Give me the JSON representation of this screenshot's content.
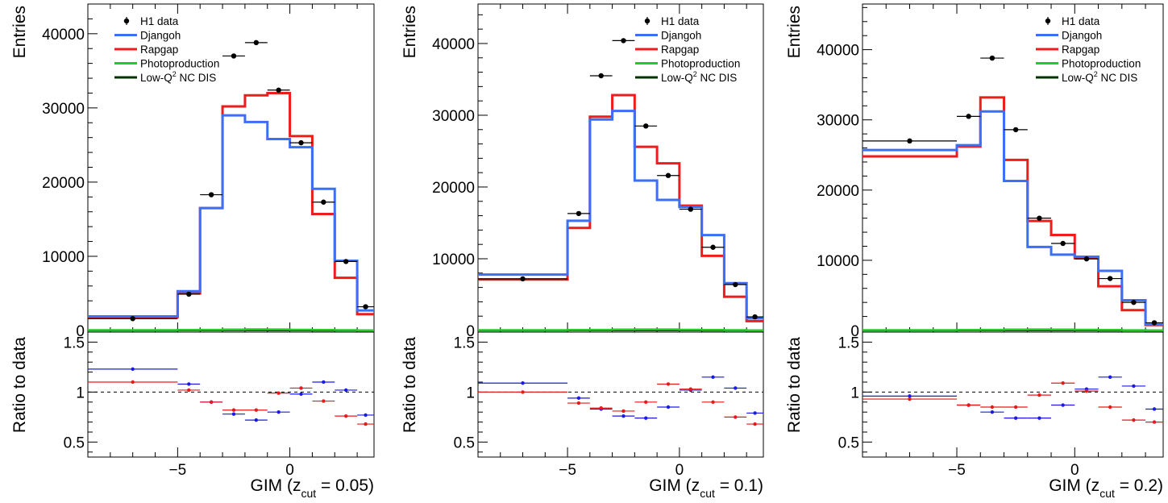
{
  "chart_data": [
    {
      "type": "histogram-with-ratio",
      "xlabel": {
        "main": "GIM (z",
        "sub": "cut",
        "tail": " = 0.05)"
      },
      "ylabel": "Entries",
      "ratio_ylabel": "Ratio to data",
      "xlim": [
        -9,
        3.75
      ],
      "ylim": [
        0,
        44000
      ],
      "ratio_ylim": [
        0.35,
        1.6
      ],
      "xticks": [
        {
          "v": -5,
          "label": "−5"
        },
        {
          "v": 0,
          "label": "0"
        }
      ],
      "yticks": [
        {
          "v": 0,
          "label": "0"
        },
        {
          "v": 10000,
          "label": "10000"
        },
        {
          "v": 20000,
          "label": "20000"
        },
        {
          "v": 30000,
          "label": "30000"
        },
        {
          "v": 40000,
          "label": "40000"
        }
      ],
      "ratio_yticks": [
        {
          "v": 0.5,
          "label": "0.5"
        },
        {
          "v": 1,
          "label": "1"
        },
        {
          "v": 1.5,
          "label": "1.5"
        }
      ],
      "bin_edges": [
        -9,
        -5,
        -4,
        -3,
        -2,
        -1,
        0,
        1,
        2,
        3,
        3.75
      ],
      "data": {
        "name": "H1 data",
        "values": [
          1600,
          4900,
          18300,
          37000,
          38800,
          32400,
          25300,
          17300,
          9300,
          3200
        ]
      },
      "mc": [
        {
          "name": "Djangoh",
          "color": "#3b6ff5",
          "values": [
            1900,
            5300,
            16500,
            29000,
            28100,
            25800,
            24700,
            19100,
            9400,
            2700
          ]
        },
        {
          "name": "Rapgap",
          "color": "#ee1c1c",
          "values": [
            1800,
            5000,
            16500,
            30200,
            31700,
            32000,
            26200,
            15700,
            7100,
            2200
          ]
        },
        {
          "name": "Photoproduction",
          "color": "#22cc22",
          "values": [
            60,
            80,
            100,
            140,
            160,
            150,
            110,
            80,
            50,
            20
          ]
        },
        {
          "name": "Low-Q² NC DIS",
          "color": "#003300",
          "values": [
            20,
            25,
            30,
            35,
            35,
            30,
            25,
            20,
            10,
            5
          ]
        }
      ],
      "ratio": {
        "Djangoh": [
          1.23,
          1.08,
          0.9,
          0.78,
          0.72,
          0.8,
          0.98,
          1.1,
          1.02,
          0.77
        ],
        "Rapgap": [
          1.1,
          1.02,
          0.9,
          0.82,
          0.82,
          0.99,
          1.04,
          0.91,
          0.76,
          0.68
        ]
      },
      "legend": {
        "entries": [
          "H1 data",
          "Djangoh",
          "Rapgap",
          "Photoproduction",
          "Low-Q"
        ],
        "last_entry_sup": "2",
        "last_entry_tail": " NC DIS"
      }
    },
    {
      "type": "histogram-with-ratio",
      "xlabel": {
        "main": "GIM (z",
        "sub": "cut",
        "tail": " = 0.1)"
      },
      "ylabel": "Entries",
      "ratio_ylabel": "Ratio to data",
      "xlim": [
        -9,
        3.75
      ],
      "ylim": [
        0,
        45500
      ],
      "ratio_ylim": [
        0.35,
        1.6
      ],
      "xticks": [
        {
          "v": -5,
          "label": "−5"
        },
        {
          "v": 0,
          "label": "0"
        }
      ],
      "yticks": [
        {
          "v": 0,
          "label": "0"
        },
        {
          "v": 10000,
          "label": "10000"
        },
        {
          "v": 20000,
          "label": "20000"
        },
        {
          "v": 30000,
          "label": "30000"
        },
        {
          "v": 40000,
          "label": "40000"
        }
      ],
      "ratio_yticks": [
        {
          "v": 0.5,
          "label": "0.5"
        },
        {
          "v": 1,
          "label": "1"
        },
        {
          "v": 1.5,
          "label": "1.5"
        }
      ],
      "bin_edges": [
        -9,
        -5,
        -4,
        -3,
        -2,
        -1,
        0,
        1,
        2,
        3,
        3.75
      ],
      "data": {
        "name": "H1 data",
        "values": [
          7200,
          16300,
          35500,
          40400,
          28500,
          21600,
          16900,
          11600,
          6400,
          1900
        ]
      },
      "mc": [
        {
          "name": "Djangoh",
          "color": "#3b6ff5",
          "values": [
            7800,
            15300,
            29400,
            30600,
            20900,
            18200,
            17200,
            13300,
            6600,
            1700
          ]
        },
        {
          "name": "Rapgap",
          "color": "#ee1c1c",
          "values": [
            7100,
            14300,
            29800,
            32800,
            25600,
            23300,
            17400,
            10400,
            4700,
            1300
          ]
        },
        {
          "name": "Photoproduction",
          "color": "#22cc22",
          "values": [
            60,
            80,
            100,
            140,
            160,
            150,
            110,
            80,
            50,
            20
          ]
        },
        {
          "name": "Low-Q² NC DIS",
          "color": "#003300",
          "values": [
            20,
            25,
            30,
            35,
            35,
            30,
            25,
            20,
            10,
            5
          ]
        }
      ],
      "ratio": {
        "Djangoh": [
          1.09,
          0.94,
          0.83,
          0.76,
          0.74,
          0.85,
          1.02,
          1.15,
          1.04,
          0.79
        ],
        "Rapgap": [
          1.0,
          0.89,
          0.84,
          0.81,
          0.9,
          1.08,
          1.03,
          0.9,
          0.75,
          0.68
        ]
      },
      "legend": {
        "entries": [
          "H1 data",
          "Djangoh",
          "Rapgap",
          "Photoproduction",
          "Low-Q"
        ],
        "last_entry_sup": "2",
        "last_entry_tail": " NC DIS"
      }
    },
    {
      "type": "histogram-with-ratio",
      "xlabel": {
        "main": "GIM (z",
        "sub": "cut",
        "tail": " = 0.2)"
      },
      "ylabel": "Entries",
      "ratio_ylabel": "Ratio to data",
      "xlim": [
        -9,
        3.75
      ],
      "ylim": [
        0,
        46500
      ],
      "ratio_ylim": [
        0.35,
        1.6
      ],
      "xticks": [
        {
          "v": -5,
          "label": "−5"
        },
        {
          "v": 0,
          "label": "0"
        }
      ],
      "yticks": [
        {
          "v": 0,
          "label": "0"
        },
        {
          "v": 10000,
          "label": "10000"
        },
        {
          "v": 20000,
          "label": "20000"
        },
        {
          "v": 30000,
          "label": "30000"
        },
        {
          "v": 40000,
          "label": "40000"
        }
      ],
      "ratio_yticks": [
        {
          "v": 0.5,
          "label": "0.5"
        },
        {
          "v": 1,
          "label": "1"
        },
        {
          "v": 1.5,
          "label": "1.5"
        }
      ],
      "bin_edges": [
        -9,
        -5,
        -4,
        -3,
        -2,
        -1,
        0,
        1,
        2,
        3,
        3.75
      ],
      "data": {
        "name": "H1 data",
        "values": [
          27000,
          30500,
          38800,
          28600,
          16000,
          12400,
          10200,
          7400,
          4000,
          1100
        ]
      },
      "mc": [
        {
          "name": "Djangoh",
          "color": "#3b6ff5",
          "values": [
            25700,
            26400,
            31200,
            21300,
            11900,
            10800,
            10500,
            8500,
            4300,
            850
          ]
        },
        {
          "name": "Rapgap",
          "color": "#ee1c1c",
          "values": [
            24800,
            26200,
            33200,
            24300,
            15600,
            13600,
            10300,
            6300,
            2900,
            770
          ]
        },
        {
          "name": "Photoproduction",
          "color": "#22cc22",
          "values": [
            60,
            80,
            100,
            140,
            160,
            150,
            110,
            80,
            50,
            20
          ]
        },
        {
          "name": "Low-Q² NC DIS",
          "color": "#003300",
          "values": [
            20,
            25,
            30,
            35,
            35,
            30,
            25,
            20,
            10,
            5
          ]
        }
      ],
      "ratio": {
        "Djangoh": [
          0.96,
          0.87,
          0.8,
          0.74,
          0.74,
          0.87,
          1.03,
          1.15,
          1.06,
          0.83
        ],
        "Rapgap": [
          0.93,
          0.87,
          0.85,
          0.85,
          0.97,
          1.09,
          1.01,
          0.85,
          0.72,
          0.7
        ]
      },
      "legend": {
        "entries": [
          "H1 data",
          "Djangoh",
          "Rapgap",
          "Photoproduction",
          "Low-Q"
        ],
        "last_entry_sup": "2",
        "last_entry_tail": " NC DIS"
      }
    }
  ]
}
